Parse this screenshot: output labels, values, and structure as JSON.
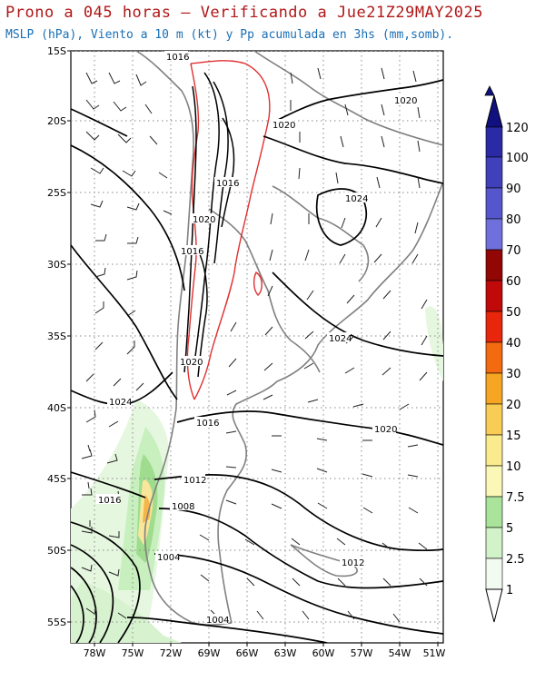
{
  "title": {
    "line1": "Prono a 045 horas — Verificando a Jue21Z29MAY2025",
    "line2": "MSLP (hPa), Viento a 10 m (kt) y Pp acumulada en 3hs (mm,somb)."
  },
  "map": {
    "lat_ticks": [
      "15S",
      "20S",
      "25S",
      "30S",
      "35S",
      "40S",
      "45S",
      "50S",
      "55S"
    ],
    "lat_values": [
      -15,
      -20,
      -25,
      -30,
      -35,
      -40,
      -45,
      -50,
      -55
    ],
    "lon_ticks": [
      "78W",
      "75W",
      "72W",
      "69W",
      "66W",
      "63W",
      "60W",
      "57W",
      "54W",
      "51W"
    ],
    "lon_values": [
      -78,
      -75,
      -72,
      -69,
      -66,
      -63,
      -60,
      -57,
      -54,
      -51
    ],
    "lat_range": [
      -56,
      -15
    ],
    "lon_range": [
      -79.5,
      -50.5
    ],
    "gridlines": "dotted",
    "isobar_labels": [
      "1016",
      "1020",
      "1020",
      "1016",
      "1024",
      "1020",
      "1016",
      "1024",
      "1024",
      "1016",
      "1020",
      "1012",
      "1016",
      "1008",
      "1004",
      "1012",
      "1004"
    ],
    "colors": {
      "isobar": "#000000",
      "coast": "#808080",
      "topo_contour": "#e03030",
      "title_line1": "#b01818",
      "title_line2": "#1a6fb5"
    }
  },
  "colorbar": {
    "labels": [
      "1",
      "2.5",
      "5",
      "7.5",
      "10",
      "15",
      "20",
      "30",
      "40",
      "50",
      "60",
      "70",
      "80",
      "90",
      "100",
      "120"
    ],
    "colors": [
      "#f2fbef",
      "#d2f3c9",
      "#a9e49a",
      "#fbf8b7",
      "#fbeb8f",
      "#f9cd55",
      "#f6a623",
      "#f46a10",
      "#e8260c",
      "#c00a0a",
      "#930606",
      "#7070dd",
      "#5656cc",
      "#4040bb",
      "#2a2aa6",
      "#101080"
    ],
    "units": "mm"
  }
}
